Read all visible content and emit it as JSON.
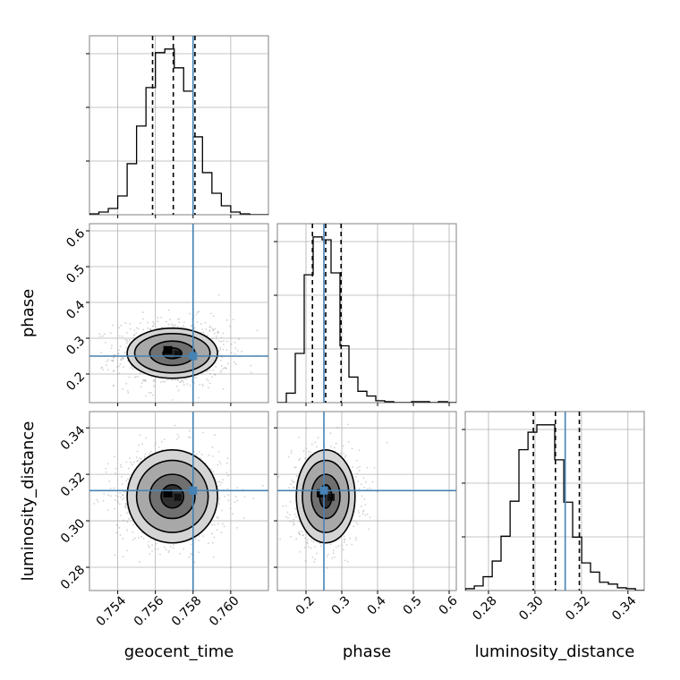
{
  "chart_data": {
    "type": "corner",
    "parameters": [
      "geocent_time",
      "phase",
      "luminosity_distance"
    ],
    "truths": {
      "geocent_time": 0.758,
      "phase": 0.25,
      "luminosity_distance": 0.313
    },
    "colors": {
      "truth": "#4682b4",
      "hist": "#000000",
      "scatter": "#9a9a9a"
    },
    "grid": true,
    "axes": {
      "geocent_time": {
        "range": [
          0.7525,
          0.762
        ],
        "ticks": [
          0.754,
          0.756,
          0.758,
          0.76
        ],
        "tick_labels": [
          "0.754",
          "0.756",
          "0.758",
          "0.760"
        ]
      },
      "phase": {
        "range": [
          0.12,
          0.62
        ],
        "ticks": [
          0.2,
          0.3,
          0.4,
          0.5,
          0.6
        ],
        "tick_labels": [
          "0.2",
          "0.3",
          "0.4",
          "0.5",
          "0.6"
        ]
      },
      "luminosity_distance": {
        "range": [
          0.27,
          0.347
        ],
        "ticks": [
          0.28,
          0.3,
          0.32,
          0.34
        ],
        "tick_labels": [
          "0.28",
          "0.30",
          "0.32",
          "0.34"
        ]
      }
    },
    "marginals": {
      "geocent_time": {
        "quantiles": [
          0.75585,
          0.75695,
          0.7581
        ],
        "bin_edges": [
          0.7525,
          0.753,
          0.7535,
          0.754,
          0.7545,
          0.755,
          0.7555,
          0.756,
          0.7565,
          0.757,
          0.7575,
          0.758,
          0.7585,
          0.759,
          0.7595,
          0.76,
          0.7605,
          0.761,
          0.7615,
          0.762
        ],
        "counts": [
          1,
          3,
          7,
          21,
          57,
          99,
          142,
          181,
          185,
          164,
          138,
          87,
          47,
          24,
          10,
          3,
          1,
          0,
          0
        ]
      },
      "phase": {
        "quantiles": [
          0.218,
          0.255,
          0.298
        ],
        "bin_edges": [
          0.12,
          0.145,
          0.17,
          0.195,
          0.22,
          0.245,
          0.27,
          0.295,
          0.32,
          0.345,
          0.37,
          0.395,
          0.42,
          0.445,
          0.47,
          0.495,
          0.52,
          0.545,
          0.57,
          0.595,
          0.62
        ],
        "counts": [
          0,
          10,
          52,
          135,
          175,
          172,
          137,
          60,
          27,
          12,
          7,
          2,
          1,
          0,
          0,
          1,
          1,
          0,
          1,
          0
        ]
      },
      "luminosity_distance": {
        "quantiles": [
          0.2993,
          0.3088,
          0.3191
        ],
        "bin_edges": [
          0.27,
          0.2739,
          0.2777,
          0.2816,
          0.2854,
          0.2893,
          0.2931,
          0.297,
          0.3008,
          0.3047,
          0.3085,
          0.3124,
          0.3162,
          0.3201,
          0.3239,
          0.3278,
          0.3316,
          0.3355,
          0.3393,
          0.3432,
          0.347
        ],
        "counts": [
          2,
          5,
          15,
          32,
          59,
          97,
          153,
          172,
          180,
          180,
          142,
          96,
          58,
          30,
          20,
          9,
          7,
          3,
          2,
          0
        ]
      }
    },
    "joint_panels": [
      {
        "x": "geocent_time",
        "y": "phase",
        "center": [
          0.7569,
          0.258
        ],
        "sigma": [
          0.0012,
          0.038
        ],
        "contours": [
          [
            0.0005,
            0.015
          ],
          [
            0.0012,
            0.034
          ],
          [
            0.002,
            0.055
          ],
          [
            0.0024,
            0.07
          ]
        ]
      },
      {
        "x": "geocent_time",
        "y": "luminosity_distance",
        "center": [
          0.7569,
          0.3105
        ],
        "sigma": [
          0.0012,
          0.0085
        ],
        "contours": [
          [
            0.0006,
            0.005
          ],
          [
            0.0012,
            0.0095
          ],
          [
            0.0019,
            0.0155
          ],
          [
            0.0024,
            0.02
          ]
        ]
      },
      {
        "x": "phase",
        "y": "luminosity_distance",
        "center": [
          0.255,
          0.3105
        ],
        "sigma": [
          0.038,
          0.0085
        ],
        "contours": [
          [
            0.017,
            0.005
          ],
          [
            0.04,
            0.0095
          ],
          [
            0.065,
            0.0155
          ],
          [
            0.082,
            0.02
          ]
        ]
      }
    ]
  }
}
